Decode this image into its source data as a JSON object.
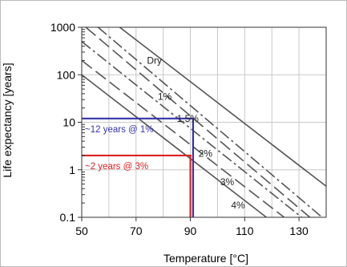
{
  "chart_data": {
    "type": "line",
    "xlabel": "Temperature [°C]",
    "ylabel": "Life expectancy [years]",
    "x_scale": "linear",
    "y_scale": "log",
    "xlim": [
      50,
      140
    ],
    "ylim": [
      0.1,
      1000
    ],
    "x_ticks": [
      50,
      70,
      90,
      110,
      130
    ],
    "y_ticks": [
      0.1,
      1,
      10,
      100,
      1000
    ],
    "x_tick_labels": [
      "50",
      "70",
      "90",
      "110",
      "130"
    ],
    "y_tick_labels": [
      "0.1",
      "1",
      "10",
      "100",
      "1000"
    ],
    "grid": true,
    "legend": "none",
    "series": [
      {
        "name": "Dry",
        "style": "solid",
        "color": "#555555",
        "x": [
          64,
          140
        ],
        "y": [
          1000,
          0.45
        ]
      },
      {
        "name": "1%",
        "style": "dash-dot",
        "color": "#555555",
        "x": [
          56,
          138.5
        ],
        "y": [
          1000,
          0.1
        ]
      },
      {
        "name": "1.5%",
        "style": "long-dash",
        "color": "#555555",
        "x": [
          51.5,
          134
        ],
        "y": [
          1000,
          0.1
        ]
      },
      {
        "name": "2%",
        "style": "dash-dot",
        "color": "#555555",
        "x": [
          50,
          131
        ],
        "y": [
          500,
          0.1
        ]
      },
      {
        "name": "3%",
        "style": "long-dash",
        "color": "#555555",
        "x": [
          50,
          124.5
        ],
        "y": [
          200,
          0.1
        ]
      },
      {
        "name": "4%",
        "style": "solid",
        "color": "#555555",
        "x": [
          50,
          118
        ],
        "y": [
          100,
          0.1
        ]
      }
    ],
    "series_labels": [
      {
        "text": "Dry",
        "x": 74,
        "y": 200
      },
      {
        "text": "1%",
        "x": 78,
        "y": 35
      },
      {
        "text": "1.5%",
        "x": 85,
        "y": 12
      },
      {
        "text": "2%",
        "x": 93,
        "y": 2.2
      },
      {
        "text": "3%",
        "x": 101,
        "y": 0.55
      },
      {
        "text": "4%",
        "x": 105,
        "y": 0.18
      }
    ],
    "annotations": [
      {
        "text": "~12 years @ 1%",
        "color": "#3333aa",
        "x_value": 91,
        "y_value": 12
      },
      {
        "text": "~2 years @ 3%",
        "color": "#dd2222",
        "x_value": 90,
        "y_value": 2
      }
    ]
  }
}
